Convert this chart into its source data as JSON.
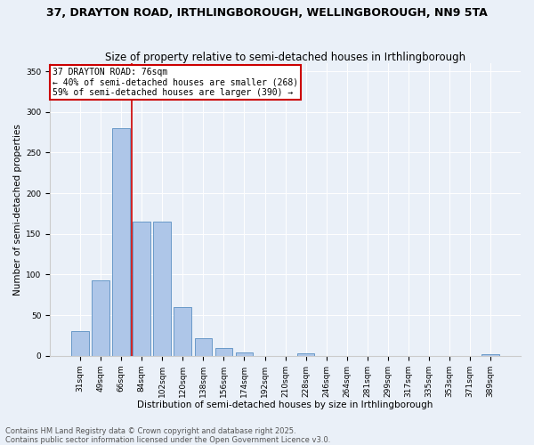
{
  "title": "37, DRAYTON ROAD, IRTHLINGBOROUGH, WELLINGBOROUGH, NN9 5TA",
  "subtitle": "Size of property relative to semi-detached houses in Irthlingborough",
  "xlabel": "Distribution of semi-detached houses by size in Irthlingborough",
  "ylabel": "Number of semi-detached properties",
  "categories": [
    "31sqm",
    "49sqm",
    "66sqm",
    "84sqm",
    "102sqm",
    "120sqm",
    "138sqm",
    "156sqm",
    "174sqm",
    "192sqm",
    "210sqm",
    "228sqm",
    "246sqm",
    "264sqm",
    "281sqm",
    "299sqm",
    "317sqm",
    "335sqm",
    "353sqm",
    "371sqm",
    "389sqm"
  ],
  "values": [
    30,
    93,
    280,
    165,
    165,
    60,
    22,
    10,
    4,
    0,
    0,
    3,
    0,
    0,
    0,
    0,
    0,
    0,
    0,
    0,
    2
  ],
  "bar_color": "#aec6e8",
  "bar_edge_color": "#5a8fc2",
  "red_line_x": 2.5,
  "annotation_title": "37 DRAYTON ROAD: 76sqm",
  "annotation_line1": "← 40% of semi-detached houses are smaller (268)",
  "annotation_line2": "59% of semi-detached houses are larger (390) →",
  "annotation_box_color": "#ffffff",
  "annotation_border_color": "#cc0000",
  "footer_line1": "Contains HM Land Registry data © Crown copyright and database right 2025.",
  "footer_line2": "Contains public sector information licensed under the Open Government Licence v3.0.",
  "bg_color": "#eaf0f8",
  "plot_bg_color": "#eaf0f8",
  "ylim": [
    0,
    360
  ],
  "yticks": [
    0,
    50,
    100,
    150,
    200,
    250,
    300,
    350
  ],
  "title_fontsize": 9,
  "subtitle_fontsize": 8.5,
  "xlabel_fontsize": 7.5,
  "ylabel_fontsize": 7.5,
  "tick_fontsize": 6.5,
  "annotation_fontsize": 7,
  "footer_fontsize": 6
}
